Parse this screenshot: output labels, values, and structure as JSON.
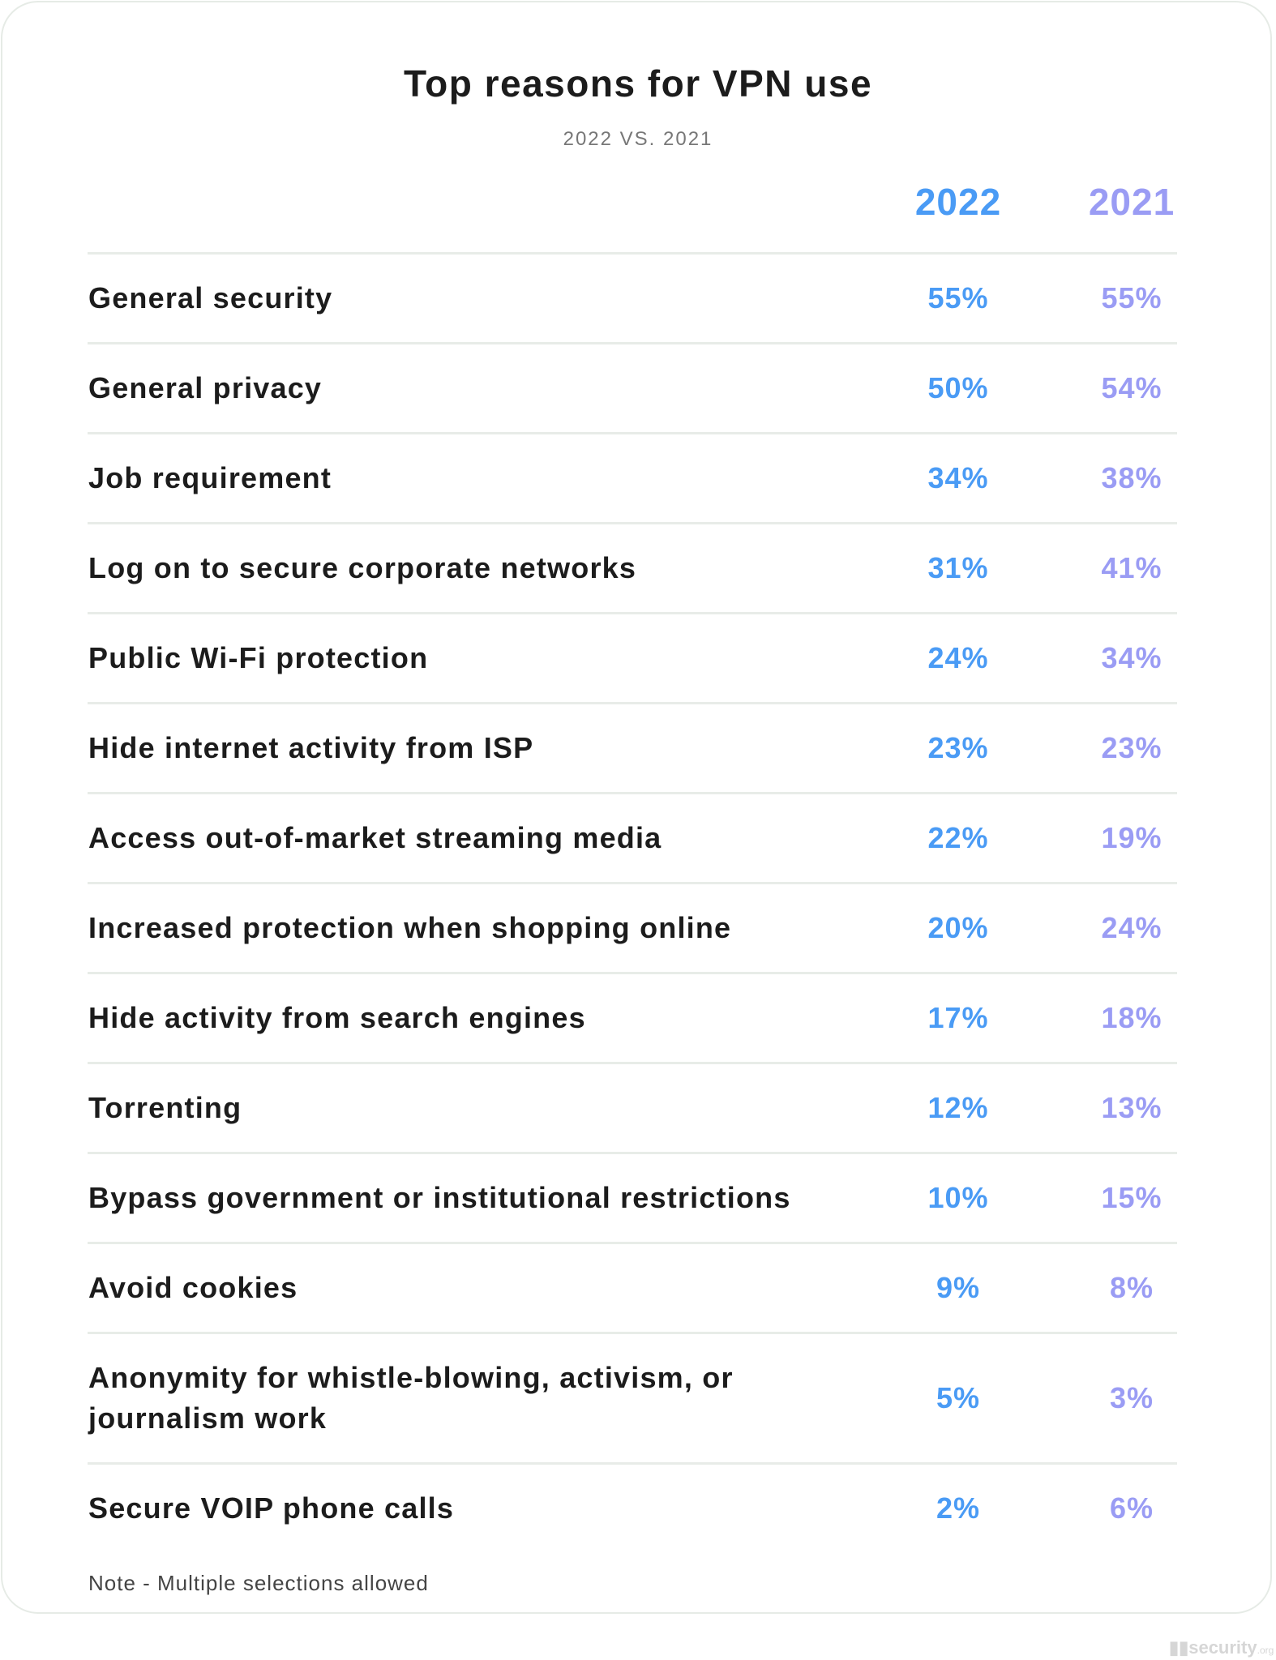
{
  "chart_data": {
    "type": "table",
    "title": "Top reasons for VPN use",
    "subtitle": "2022 VS. 2021",
    "columns": [
      "2022",
      "2021"
    ],
    "rows": [
      {
        "label": "General security",
        "v2022": "55%",
        "v2021": "55%"
      },
      {
        "label": "General privacy",
        "v2022": "50%",
        "v2021": "54%"
      },
      {
        "label": "Job requirement",
        "v2022": "34%",
        "v2021": "38%"
      },
      {
        "label": "Log on to secure corporate networks",
        "v2022": "31%",
        "v2021": "41%"
      },
      {
        "label": "Public Wi-Fi protection",
        "v2022": "24%",
        "v2021": "34%"
      },
      {
        "label": "Hide internet activity from ISP",
        "v2022": "23%",
        "v2021": "23%"
      },
      {
        "label": "Access out-of-market streaming media",
        "v2022": "22%",
        "v2021": "19%"
      },
      {
        "label": "Increased protection when shopping online",
        "v2022": "20%",
        "v2021": "24%"
      },
      {
        "label": "Hide activity from search engines",
        "v2022": "17%",
        "v2021": "18%"
      },
      {
        "label": "Torrenting",
        "v2022": "12%",
        "v2021": "13%"
      },
      {
        "label": "Bypass government or institutional restrictions",
        "v2022": "10%",
        "v2021": "15%"
      },
      {
        "label": "Avoid cookies",
        "v2022": "9%",
        "v2021": "8%"
      },
      {
        "label": "Anonymity for whistle-blowing, activism, or journalism work",
        "v2022": "5%",
        "v2021": "3%"
      },
      {
        "label": "Secure VOIP phone calls",
        "v2022": "2%",
        "v2021": "6%"
      }
    ],
    "note": "Note - Multiple selections allowed",
    "colors": {
      "2022": "#4a9bf5",
      "2021": "#9a9cf4"
    }
  },
  "logo": {
    "text": "security",
    "suffix": ".org"
  }
}
